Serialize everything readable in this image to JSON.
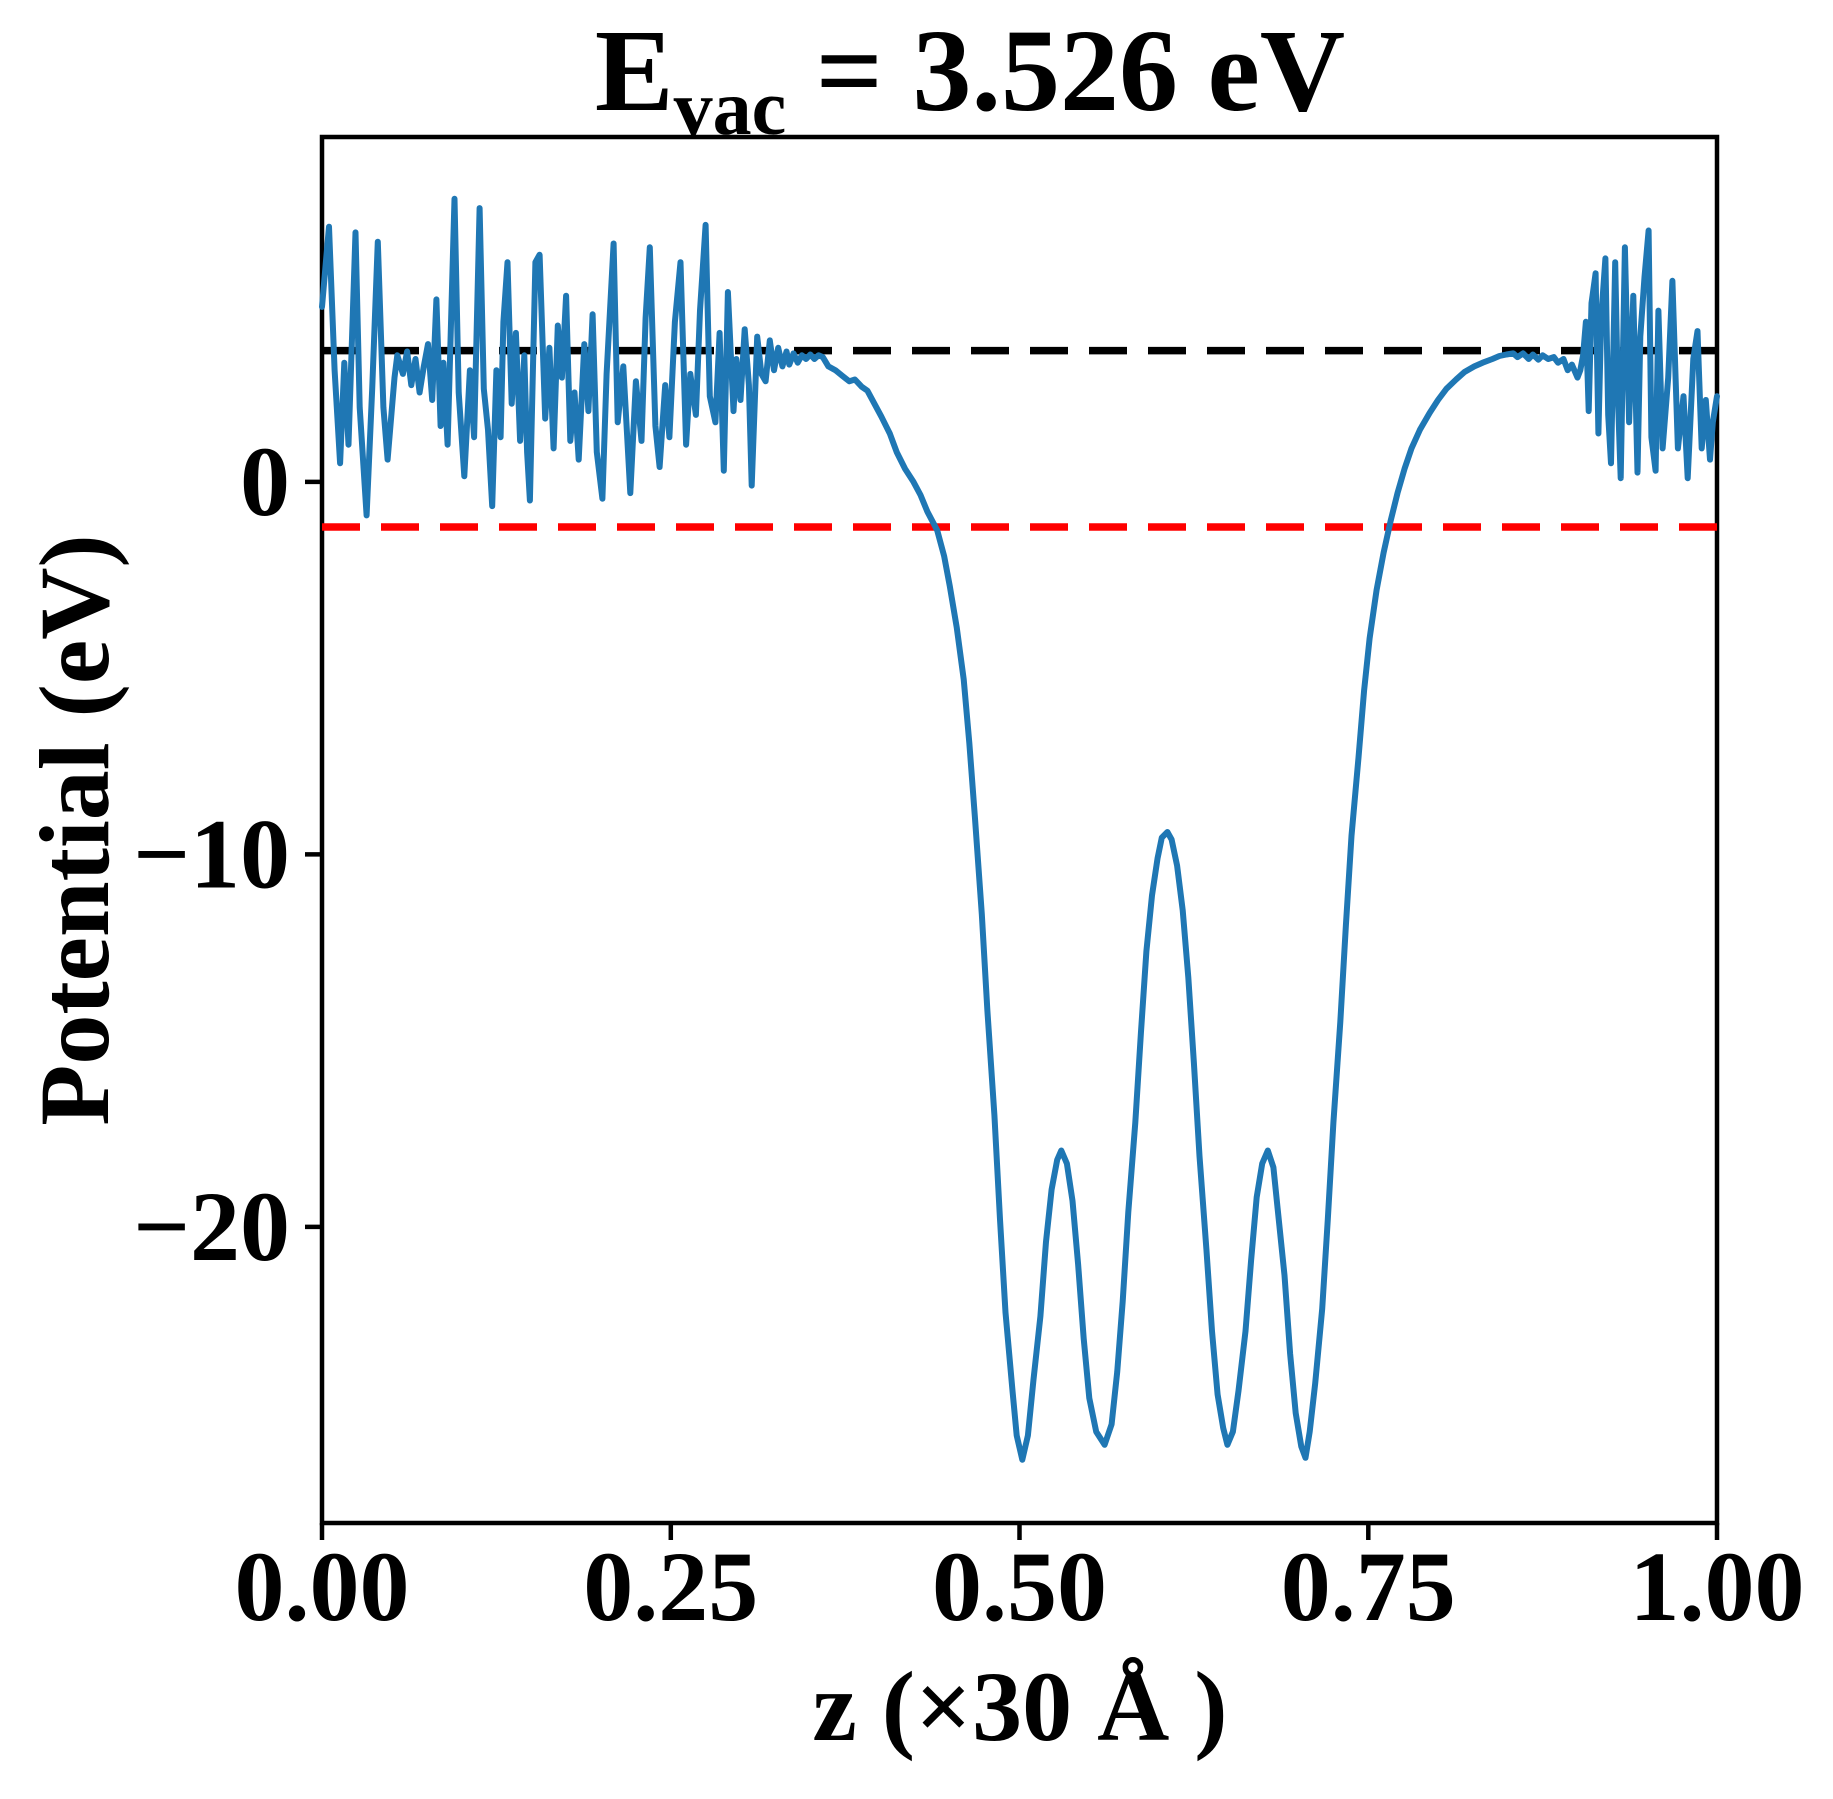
{
  "figure": {
    "title": {
      "symbol": "E",
      "subscript": "vac",
      "rest": " = 3.526 eV"
    },
    "xlabel": "z (×30 Å )",
    "ylabel": "Potential (eV)"
  },
  "axes": {
    "xlim": [
      0.0,
      1.0
    ],
    "ylim": [
      -27.95,
      9.26
    ],
    "x_ticks": [
      "0.00",
      "0.25",
      "0.50",
      "0.75",
      "1.00"
    ],
    "x_tick_values": [
      0.0,
      0.25,
      0.5,
      0.75,
      1.0
    ],
    "y_ticks": [
      "0",
      "−10",
      "−20"
    ],
    "y_tick_values": [
      0,
      -10,
      -20
    ],
    "grid": false
  },
  "chart_data": {
    "type": "line",
    "title": "E_vac = 3.526 eV",
    "xlabel": "z (×30 Å )",
    "ylabel": "Potential (eV)",
    "E_vac_eV": 3.526,
    "legend": "none",
    "reference_lines": [
      {
        "name": "vacuum-level",
        "y": 3.526,
        "color": "#000000",
        "style": "dashed"
      },
      {
        "name": "fermi-level",
        "y": -1.21,
        "color": "#ff0000",
        "style": "dashed"
      }
    ],
    "series": [
      {
        "name": "planar-averaged-potential",
        "color": "#1f77b4",
        "points": [
          [
            0.0,
            4.7
          ],
          [
            0.003,
            6.0
          ],
          [
            0.005,
            6.85
          ],
          [
            0.009,
            3.0
          ],
          [
            0.013,
            0.5
          ],
          [
            0.016,
            3.2
          ],
          [
            0.019,
            1.0
          ],
          [
            0.024,
            6.7
          ],
          [
            0.027,
            2.0
          ],
          [
            0.032,
            -0.9
          ],
          [
            0.036,
            2.5
          ],
          [
            0.04,
            6.45
          ],
          [
            0.044,
            2.0
          ],
          [
            0.047,
            0.6
          ],
          [
            0.052,
            2.8
          ],
          [
            0.054,
            3.4
          ],
          [
            0.058,
            2.9
          ],
          [
            0.061,
            3.5
          ],
          [
            0.064,
            2.6
          ],
          [
            0.067,
            3.3
          ],
          [
            0.07,
            2.4
          ],
          [
            0.073,
            3.1
          ],
          [
            0.076,
            3.7
          ],
          [
            0.079,
            2.2
          ],
          [
            0.082,
            4.9
          ],
          [
            0.085,
            1.5
          ],
          [
            0.087,
            3.2
          ],
          [
            0.09,
            1.0
          ],
          [
            0.095,
            7.6
          ],
          [
            0.098,
            2.4
          ],
          [
            0.102,
            0.15
          ],
          [
            0.106,
            3.0
          ],
          [
            0.109,
            1.2
          ],
          [
            0.113,
            7.35
          ],
          [
            0.116,
            2.5
          ],
          [
            0.119,
            1.4
          ],
          [
            0.122,
            -0.65
          ],
          [
            0.125,
            3.0
          ],
          [
            0.128,
            1.2
          ],
          [
            0.13,
            4.3
          ],
          [
            0.133,
            5.9
          ],
          [
            0.136,
            2.1
          ],
          [
            0.139,
            4.0
          ],
          [
            0.142,
            1.1
          ],
          [
            0.145,
            3.4
          ],
          [
            0.147,
            0.8
          ],
          [
            0.149,
            -0.5
          ],
          [
            0.153,
            5.9
          ],
          [
            0.156,
            6.1
          ],
          [
            0.16,
            1.7
          ],
          [
            0.163,
            3.6
          ],
          [
            0.166,
            0.9
          ],
          [
            0.169,
            4.2
          ],
          [
            0.172,
            2.8
          ],
          [
            0.175,
            5.0
          ],
          [
            0.178,
            1.1
          ],
          [
            0.181,
            2.4
          ],
          [
            0.184,
            0.6
          ],
          [
            0.188,
            3.7
          ],
          [
            0.191,
            1.9
          ],
          [
            0.194,
            4.5
          ],
          [
            0.197,
            0.8
          ],
          [
            0.201,
            -0.45
          ],
          [
            0.204,
            2.9
          ],
          [
            0.209,
            6.4
          ],
          [
            0.212,
            1.6
          ],
          [
            0.216,
            3.1
          ],
          [
            0.221,
            -0.3
          ],
          [
            0.225,
            2.7
          ],
          [
            0.229,
            1.1
          ],
          [
            0.232,
            4.4
          ],
          [
            0.235,
            6.3
          ],
          [
            0.239,
            1.5
          ],
          [
            0.242,
            0.4
          ],
          [
            0.246,
            2.6
          ],
          [
            0.249,
            1.2
          ],
          [
            0.253,
            4.3
          ],
          [
            0.257,
            5.9
          ],
          [
            0.261,
            1.0
          ],
          [
            0.264,
            2.9
          ],
          [
            0.268,
            1.8
          ],
          [
            0.271,
            4.6
          ],
          [
            0.275,
            6.9
          ],
          [
            0.278,
            2.3
          ],
          [
            0.282,
            1.6
          ],
          [
            0.285,
            4.0
          ],
          [
            0.288,
            0.3
          ],
          [
            0.291,
            5.1
          ],
          [
            0.295,
            1.9
          ],
          [
            0.297,
            3.3
          ],
          [
            0.3,
            2.2
          ],
          [
            0.303,
            4.1
          ],
          [
            0.306,
            2.6
          ],
          [
            0.308,
            -0.1
          ],
          [
            0.312,
            3.9
          ],
          [
            0.315,
            2.9
          ],
          [
            0.318,
            2.7
          ],
          [
            0.321,
            3.8
          ],
          [
            0.324,
            3.0
          ],
          [
            0.327,
            3.6
          ],
          [
            0.33,
            3.1
          ],
          [
            0.333,
            3.5
          ],
          [
            0.335,
            3.15
          ],
          [
            0.338,
            3.45
          ],
          [
            0.341,
            3.2
          ],
          [
            0.344,
            3.4
          ],
          [
            0.347,
            3.3
          ],
          [
            0.35,
            3.42
          ],
          [
            0.353,
            3.3
          ],
          [
            0.356,
            3.4
          ],
          [
            0.359,
            3.35
          ],
          [
            0.363,
            3.1
          ],
          [
            0.368,
            3.0
          ],
          [
            0.373,
            2.85
          ],
          [
            0.378,
            2.7
          ],
          [
            0.382,
            2.75
          ],
          [
            0.387,
            2.55
          ],
          [
            0.391,
            2.45
          ],
          [
            0.396,
            2.1
          ],
          [
            0.401,
            1.75
          ],
          [
            0.407,
            1.3
          ],
          [
            0.412,
            0.8
          ],
          [
            0.418,
            0.35
          ],
          [
            0.424,
            0.0
          ],
          [
            0.429,
            -0.35
          ],
          [
            0.434,
            -0.8
          ],
          [
            0.441,
            -1.3
          ],
          [
            0.446,
            -2.0
          ],
          [
            0.45,
            -2.8
          ],
          [
            0.455,
            -3.9
          ],
          [
            0.46,
            -5.3
          ],
          [
            0.464,
            -7.0
          ],
          [
            0.468,
            -9.0
          ],
          [
            0.473,
            -11.6
          ],
          [
            0.477,
            -14.2
          ],
          [
            0.482,
            -17.0
          ],
          [
            0.486,
            -19.8
          ],
          [
            0.49,
            -22.3
          ],
          [
            0.495,
            -24.4
          ],
          [
            0.498,
            -25.6
          ],
          [
            0.502,
            -26.25
          ],
          [
            0.506,
            -25.6
          ],
          [
            0.51,
            -24.1
          ],
          [
            0.515,
            -22.4
          ],
          [
            0.519,
            -20.4
          ],
          [
            0.523,
            -19.0
          ],
          [
            0.527,
            -18.2
          ],
          [
            0.53,
            -17.95
          ],
          [
            0.534,
            -18.3
          ],
          [
            0.538,
            -19.3
          ],
          [
            0.542,
            -21.0
          ],
          [
            0.546,
            -23.0
          ],
          [
            0.55,
            -24.6
          ],
          [
            0.555,
            -25.5
          ],
          [
            0.561,
            -25.85
          ],
          [
            0.566,
            -25.3
          ],
          [
            0.57,
            -23.9
          ],
          [
            0.574,
            -22.0
          ],
          [
            0.578,
            -19.6
          ],
          [
            0.583,
            -17.2
          ],
          [
            0.587,
            -14.8
          ],
          [
            0.591,
            -12.6
          ],
          [
            0.595,
            -11.1
          ],
          [
            0.599,
            -10.1
          ],
          [
            0.602,
            -9.55
          ],
          [
            0.606,
            -9.4
          ],
          [
            0.609,
            -9.6
          ],
          [
            0.613,
            -10.3
          ],
          [
            0.617,
            -11.5
          ],
          [
            0.621,
            -13.3
          ],
          [
            0.625,
            -15.6
          ],
          [
            0.629,
            -18.1
          ],
          [
            0.634,
            -20.6
          ],
          [
            0.638,
            -22.8
          ],
          [
            0.642,
            -24.5
          ],
          [
            0.646,
            -25.4
          ],
          [
            0.649,
            -25.85
          ],
          [
            0.653,
            -25.5
          ],
          [
            0.657,
            -24.4
          ],
          [
            0.662,
            -22.8
          ],
          [
            0.666,
            -20.9
          ],
          [
            0.67,
            -19.2
          ],
          [
            0.674,
            -18.3
          ],
          [
            0.678,
            -17.95
          ],
          [
            0.682,
            -18.4
          ],
          [
            0.685,
            -19.5
          ],
          [
            0.69,
            -21.3
          ],
          [
            0.694,
            -23.4
          ],
          [
            0.698,
            -25.0
          ],
          [
            0.702,
            -25.9
          ],
          [
            0.705,
            -26.2
          ],
          [
            0.708,
            -25.5
          ],
          [
            0.712,
            -24.2
          ],
          [
            0.717,
            -22.2
          ],
          [
            0.721,
            -19.8
          ],
          [
            0.725,
            -17.2
          ],
          [
            0.73,
            -14.5
          ],
          [
            0.734,
            -11.9
          ],
          [
            0.738,
            -9.5
          ],
          [
            0.743,
            -7.4
          ],
          [
            0.747,
            -5.6
          ],
          [
            0.751,
            -4.2
          ],
          [
            0.756,
            -2.9
          ],
          [
            0.761,
            -1.9
          ],
          [
            0.766,
            -1.05
          ],
          [
            0.771,
            -0.3
          ],
          [
            0.776,
            0.35
          ],
          [
            0.781,
            0.9
          ],
          [
            0.787,
            1.4
          ],
          [
            0.794,
            1.85
          ],
          [
            0.8,
            2.2
          ],
          [
            0.806,
            2.5
          ],
          [
            0.813,
            2.75
          ],
          [
            0.819,
            2.95
          ],
          [
            0.826,
            3.1
          ],
          [
            0.832,
            3.2
          ],
          [
            0.839,
            3.3
          ],
          [
            0.844,
            3.38
          ],
          [
            0.849,
            3.42
          ],
          [
            0.854,
            3.45
          ],
          [
            0.857,
            3.35
          ],
          [
            0.861,
            3.45
          ],
          [
            0.865,
            3.3
          ],
          [
            0.868,
            3.42
          ],
          [
            0.872,
            3.28
          ],
          [
            0.875,
            3.4
          ],
          [
            0.879,
            3.3
          ],
          [
            0.883,
            3.35
          ],
          [
            0.886,
            3.2
          ],
          [
            0.89,
            3.3
          ],
          [
            0.893,
            3.0
          ],
          [
            0.896,
            3.15
          ],
          [
            0.9,
            2.8
          ],
          [
            0.902,
            3.0
          ],
          [
            0.904,
            3.4
          ],
          [
            0.906,
            4.3
          ],
          [
            0.908,
            1.9
          ],
          [
            0.91,
            4.8
          ],
          [
            0.913,
            5.6
          ],
          [
            0.915,
            1.3
          ],
          [
            0.917,
            4.4
          ],
          [
            0.92,
            6.0
          ],
          [
            0.922,
            1.8
          ],
          [
            0.924,
            0.5
          ],
          [
            0.927,
            5.9
          ],
          [
            0.929,
            2.2
          ],
          [
            0.931,
            0.1
          ],
          [
            0.934,
            6.3
          ],
          [
            0.937,
            1.6
          ],
          [
            0.94,
            5.0
          ],
          [
            0.943,
            0.25
          ],
          [
            0.945,
            3.9
          ],
          [
            0.948,
            5.5
          ],
          [
            0.951,
            6.75
          ],
          [
            0.953,
            1.2
          ],
          [
            0.956,
            0.3
          ],
          [
            0.958,
            4.6
          ],
          [
            0.961,
            0.9
          ],
          [
            0.965,
            2.8
          ],
          [
            0.968,
            5.4
          ],
          [
            0.972,
            0.9
          ],
          [
            0.976,
            2.3
          ],
          [
            0.979,
            0.1
          ],
          [
            0.983,
            3.3
          ],
          [
            0.986,
            4.05
          ],
          [
            0.989,
            0.9
          ],
          [
            0.992,
            2.2
          ],
          [
            0.995,
            0.6
          ],
          [
            0.997,
            1.6
          ],
          [
            1.0,
            2.3
          ]
        ]
      }
    ]
  }
}
